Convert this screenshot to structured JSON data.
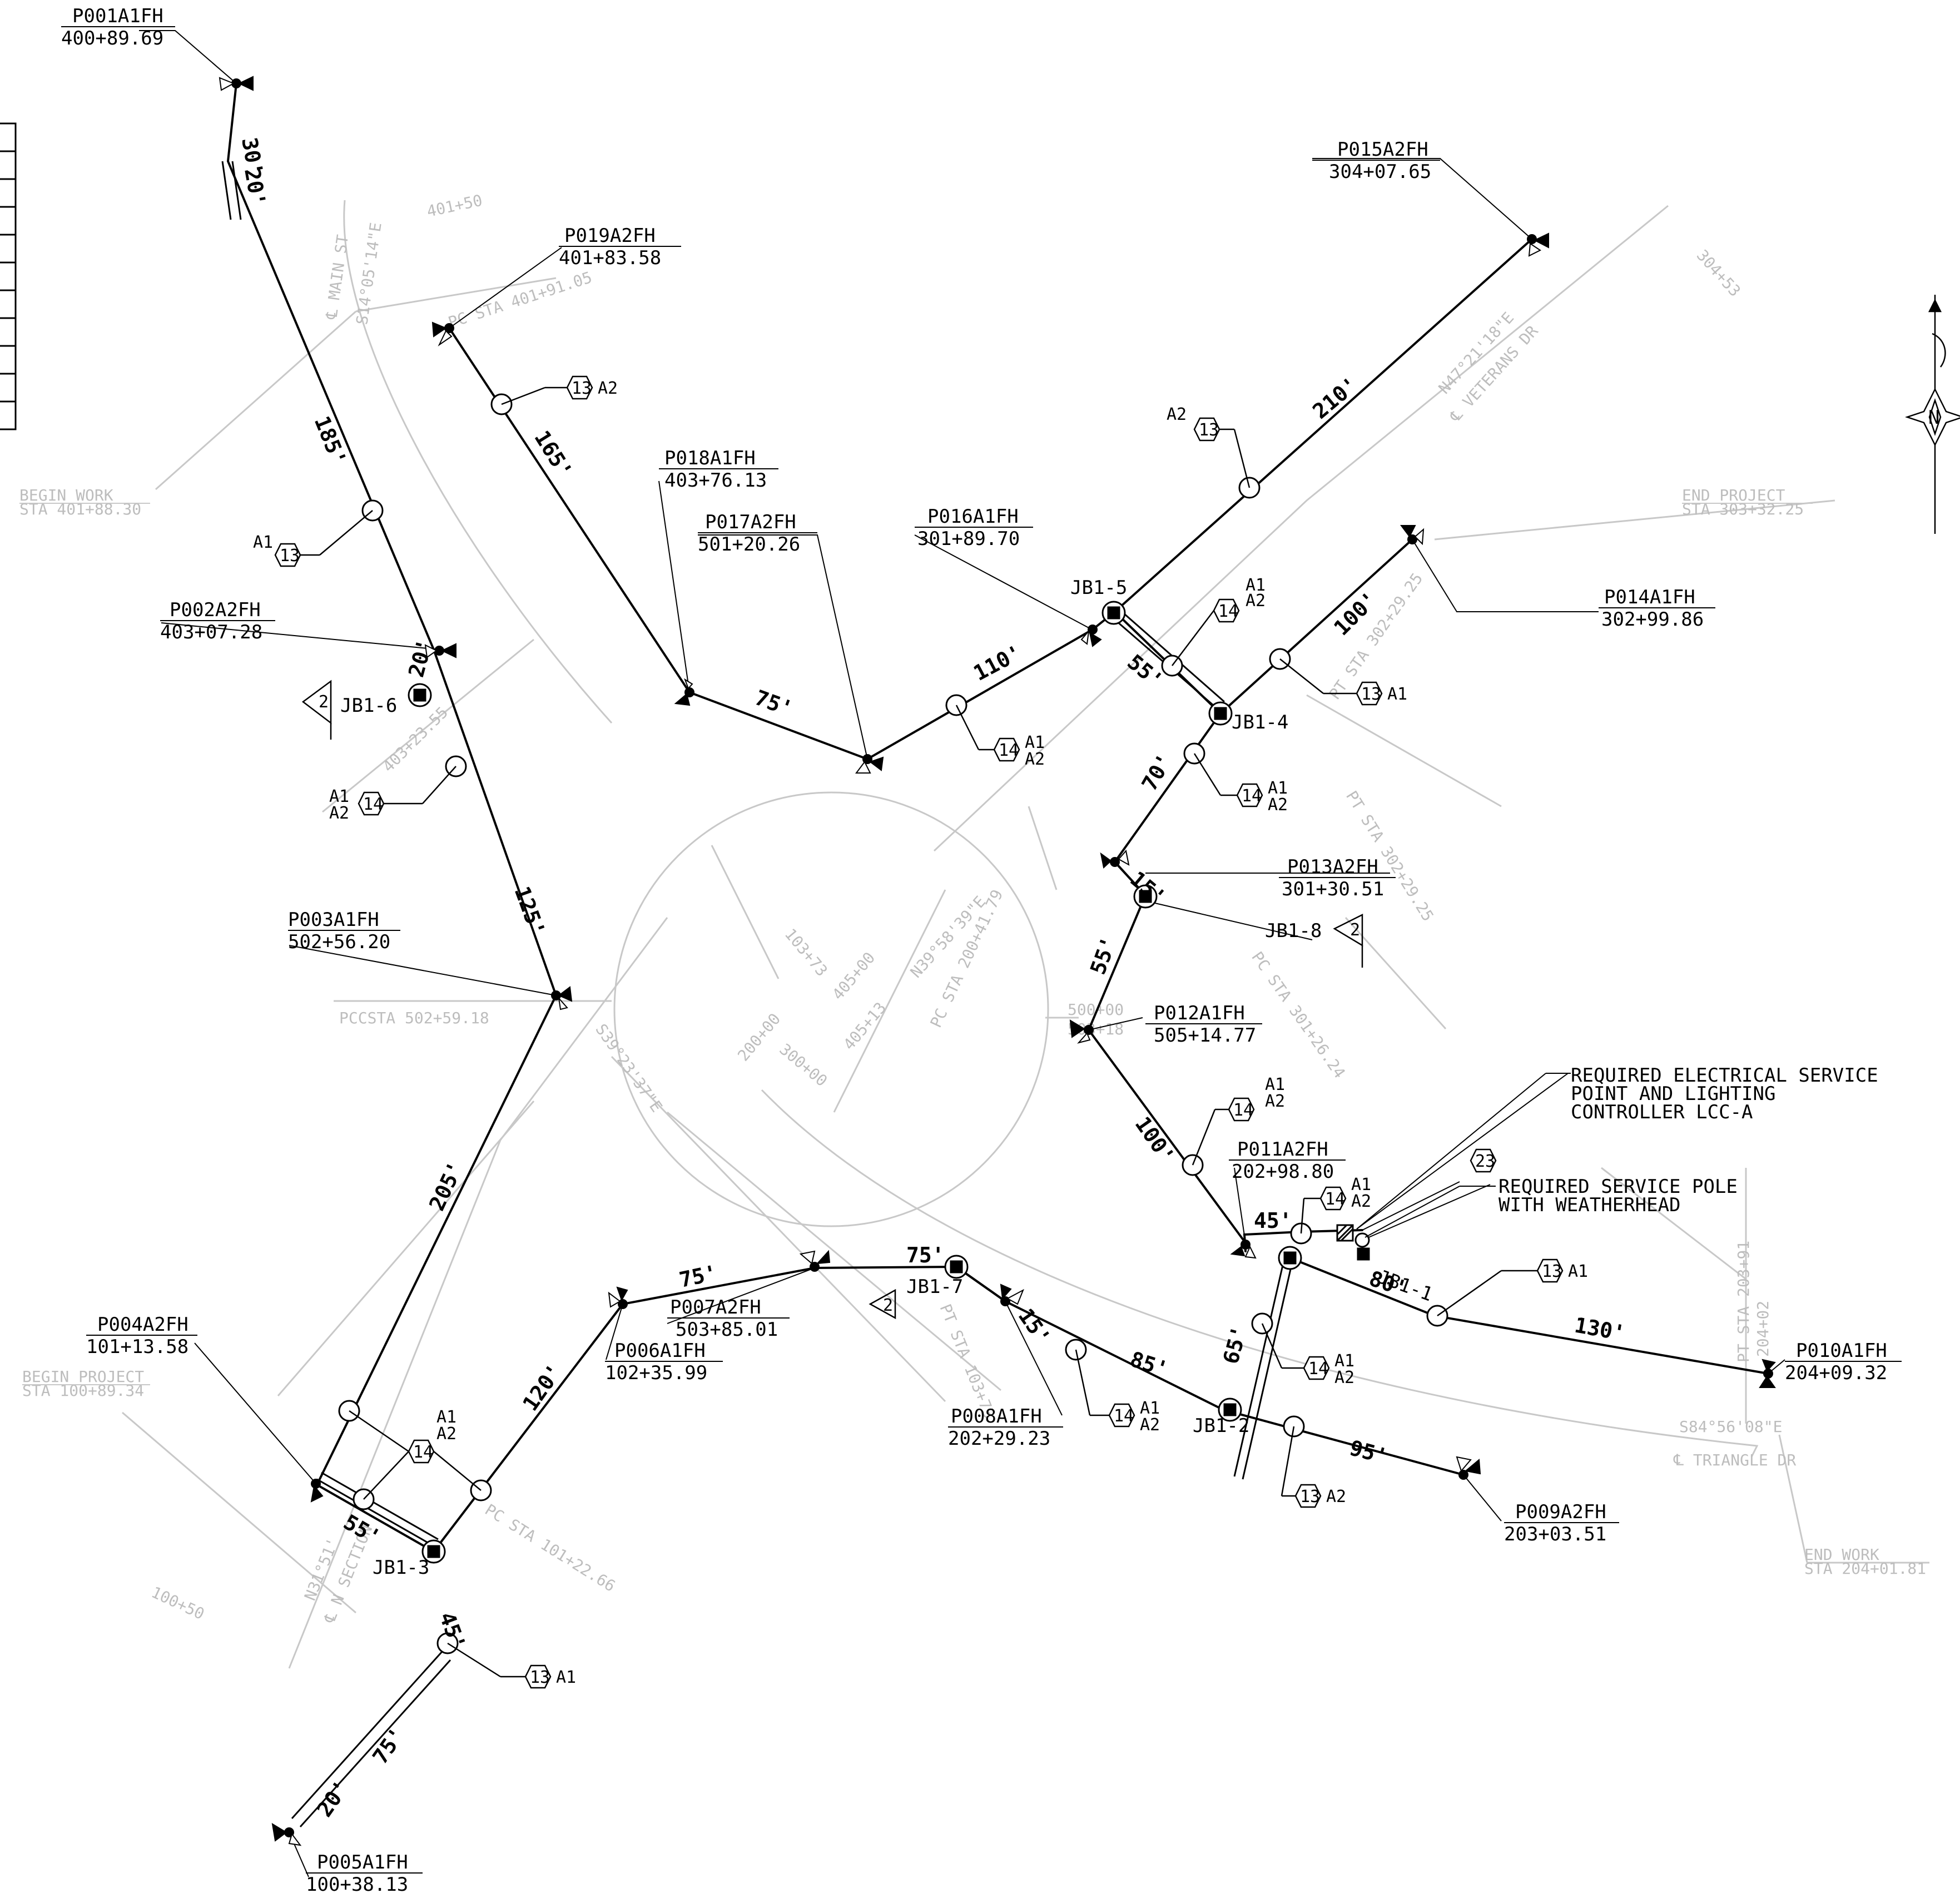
{
  "poles": [
    {
      "id": "P001A1FH",
      "station": "400+89.69"
    },
    {
      "id": "P002A2FH",
      "station": "403+07.28"
    },
    {
      "id": "P003A1FH",
      "station": "502+56.20"
    },
    {
      "id": "P004A2FH",
      "station": "101+13.58"
    },
    {
      "id": "P005A1FH",
      "station": "100+38.13"
    },
    {
      "id": "P006A1FH",
      "station": "102+35.99"
    },
    {
      "id": "P007A2FH",
      "station": "503+85.01"
    },
    {
      "id": "P008A1FH",
      "station": "202+29.23"
    },
    {
      "id": "P009A2FH",
      "station": "203+03.51"
    },
    {
      "id": "P010A1FH",
      "station": "204+09.32"
    },
    {
      "id": "P011A2FH",
      "station": "202+98.80"
    },
    {
      "id": "P012A1FH",
      "station": "505+14.77"
    },
    {
      "id": "P013A2FH",
      "station": "301+30.51"
    },
    {
      "id": "P014A1FH",
      "station": "302+99.86"
    },
    {
      "id": "P015A2FH",
      "station": "304+07.65"
    },
    {
      "id": "P016A1FH",
      "station": "301+89.70"
    },
    {
      "id": "P017A2FH",
      "station": "501+20.26"
    },
    {
      "id": "P018A1FH",
      "station": "403+76.13"
    },
    {
      "id": "P019A2FH",
      "station": "401+83.58"
    }
  ],
  "junction_boxes": [
    "JB1-1",
    "JB1-2",
    "JB1-3",
    "JB1-4",
    "JB1-5",
    "JB1-6",
    "JB1-7",
    "JB1-8"
  ],
  "segments": [
    "30'",
    "20'",
    "185'",
    "20'",
    "125'",
    "205'",
    "55'",
    "45'",
    "75'",
    "20'",
    "120'",
    "75'",
    "75'",
    "15'",
    "85'",
    "95'",
    "65'",
    "80'",
    "130'",
    "45'",
    "100'",
    "55'",
    "15'",
    "70'",
    "100'",
    "55'",
    "210'",
    "110'",
    "75'",
    "165'"
  ],
  "conductor_refs": [
    "13",
    "14",
    "23"
  ],
  "conductor_tags": [
    "A1",
    "A2"
  ],
  "revision_tag": "2",
  "notes": {
    "service": [
      "REQUIRED ELECTRICAL SERVICE",
      "POINT AND LIGHTING",
      "CONTROLLER LCC-A"
    ],
    "pole": [
      "REQUIRED SERVICE POLE",
      "WITH WEATHERHEAD"
    ]
  },
  "base_map": {
    "begin_work_top": [
      "BEGIN WORK",
      "STA 401+88.30"
    ],
    "end_project_top": [
      "END PROJECT",
      "STA 303+32.25"
    ],
    "begin_project_bottom": [
      "BEGIN PROJECT",
      "STA 100+89.34"
    ],
    "end_work_bottom": [
      "END WORK",
      "STA 204+01.81"
    ],
    "main_st": "℄ MAIN ST",
    "main_st_bearing": "S14°05'14\"E",
    "veterans_dr": "℄ VETERANS DR",
    "veterans_bearing": "N47°21'18\"E",
    "triangle_dr": "℄ TRIANGLE DR",
    "triangle_bearing": "S84°56'08\"E",
    "n_section": "℄ N SECTION",
    "n_section_bearing": "N31°51'",
    "pc_401": "PC STA 401+91.05",
    "pcc_502": "PCCSTA 502+59.18",
    "pt_302": "PT STA 302+29.25",
    "pc_301": "PC STA 301+26.24",
    "pc_101": "PC STA 101+22.66",
    "pt_103": "PT STA 103+73",
    "pt_203": "PT STA 203+91",
    "sta_204_02": "204+02",
    "pc_200": "PC STA 200+41.79",
    "s39": "S39°23'37\"E",
    "n39": "N39°58'39\"E",
    "sta_401_50": "401+50",
    "sta_304_53": "304+53",
    "sta_100_50": "100+50",
    "sta_403_23": "403+23.55",
    "sta_103_73": "103+73",
    "sta_405_00": "405+00",
    "sta_405_13": "405+13",
    "sta_200_00": "200+00",
    "sta_300_00": "300+00",
    "sta_500_00": "500+00",
    "sta_503_18": "503+18"
  },
  "north_label": "N"
}
